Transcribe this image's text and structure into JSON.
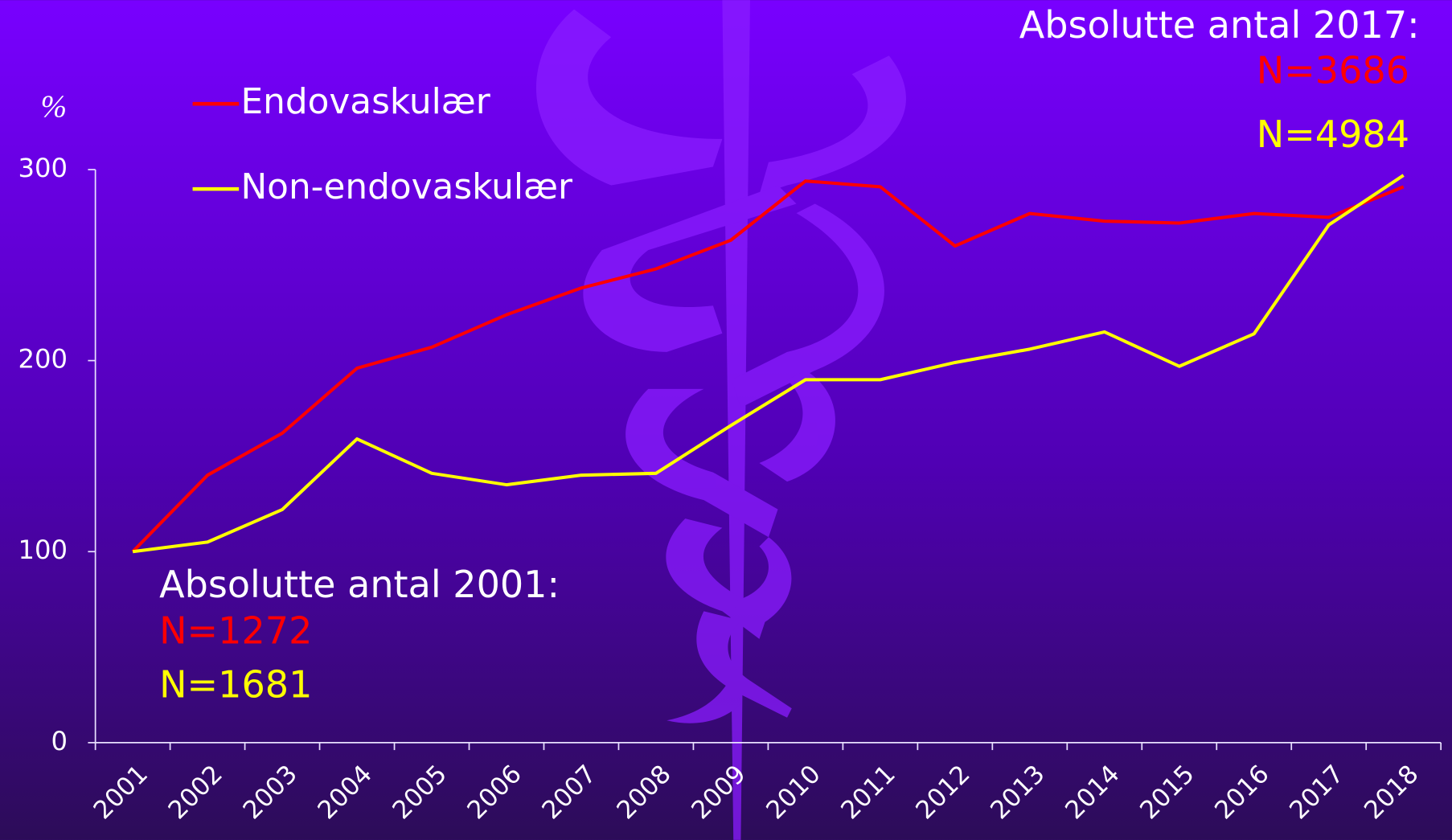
{
  "chart_data": {
    "type": "line",
    "y_label": "%",
    "categories": [
      "2001",
      "2002",
      "2003",
      "2004",
      "2005",
      "2006",
      "2007",
      "2008",
      "2009",
      "2010",
      "2011",
      "2012",
      "2013",
      "2014",
      "2015",
      "2016",
      "2017",
      "2018"
    ],
    "series": [
      {
        "name": "Endovaskulær",
        "color": "#ff0000",
        "values": [
          100,
          140,
          162,
          196,
          207,
          224,
          238,
          248,
          263,
          294,
          291,
          260,
          277,
          273,
          272,
          277,
          275,
          291
        ]
      },
      {
        "name": "Non-endovaskulær",
        "color": "#ffff00",
        "values": [
          100,
          105,
          122,
          159,
          141,
          135,
          140,
          141,
          166,
          190,
          190,
          199,
          206,
          215,
          197,
          214,
          271,
          297
        ]
      }
    ],
    "ylim": [
      0,
      300
    ],
    "yticks": [
      0,
      100,
      200,
      300
    ],
    "legend": "upper left",
    "annotations": [
      {
        "text": "Absolutte antal 2017:",
        "color": "#ffffff"
      },
      {
        "text": "N=3686",
        "color": "#ff0000"
      },
      {
        "text": "N=4984",
        "color": "#ffff00"
      },
      {
        "text": "Absolutte antal 2001:",
        "color": "#ffffff"
      },
      {
        "text": "N=1272",
        "color": "#ff0000"
      },
      {
        "text": "N=1681",
        "color": "#ffff00"
      }
    ]
  }
}
